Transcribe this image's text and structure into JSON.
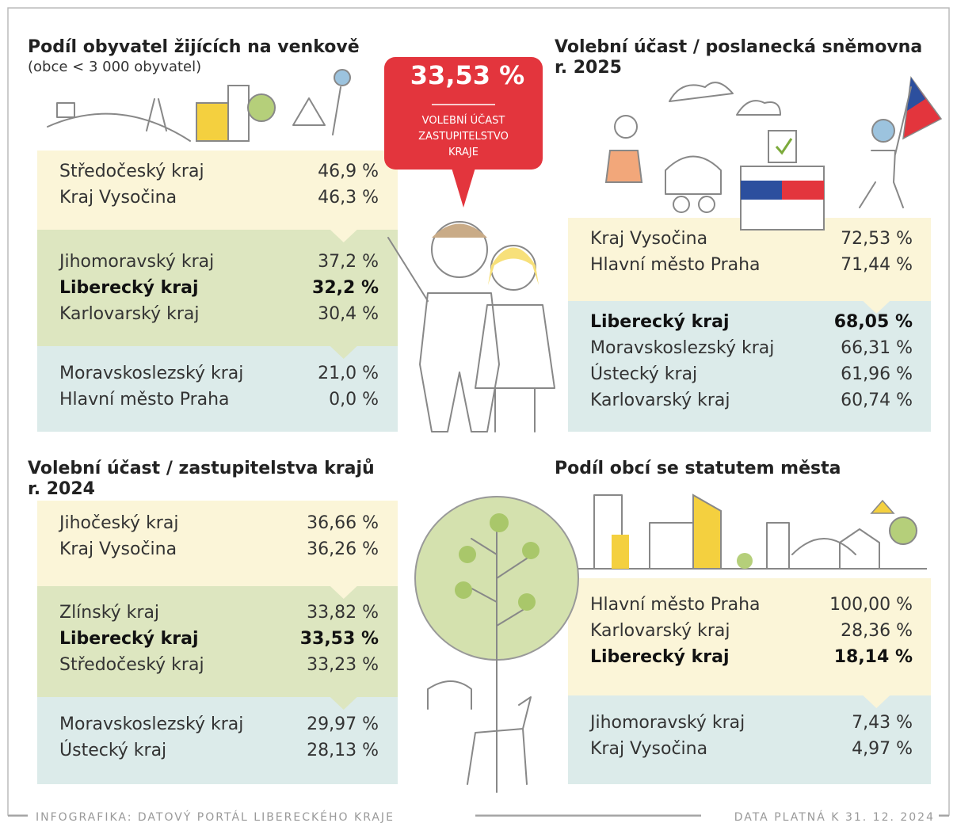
{
  "callout": {
    "value": "33,53 %",
    "label": [
      "VOLEBNÍ ÚČAST",
      "ZASTUPITELSTVO",
      "KRAJE"
    ]
  },
  "panels": [
    {
      "title": [
        "Podíl obyvatel žijících na venkově"
      ],
      "subtitle": "(obce < 3 000 obyvatel)",
      "groups": [
        {
          "color": "#fbf5d8",
          "rows": [
            {
              "name": "Středočeský kraj",
              "value": "46,9 %"
            },
            {
              "name": "Kraj Vysočina",
              "value": "46,3 %"
            }
          ]
        },
        {
          "color": "#dde6c0",
          "rows": [
            {
              "name": "Jihomoravský kraj",
              "value": "37,2 %"
            },
            {
              "name": "Liberecký kraj",
              "value": "32,2 %",
              "highlight": true
            },
            {
              "name": "Karlovarský kraj",
              "value": "30,4 %"
            }
          ]
        },
        {
          "color": "#dcebea",
          "rows": [
            {
              "name": "Moravskoslezský kraj",
              "value": "21,0 %"
            },
            {
              "name": "Hlavní město Praha",
              "value": "0,0 %"
            }
          ]
        }
      ]
    },
    {
      "title": [
        "Volební účast / poslanecká sněmovna",
        "r. 2025"
      ],
      "groups": [
        {
          "color": "#fbf5d8",
          "rows": [
            {
              "name": "Kraj Vysočina",
              "value": "72,53 %"
            },
            {
              "name": "Hlavní město Praha",
              "value": "71,44 %"
            }
          ]
        },
        {
          "color": "#dcebea",
          "rows": [
            {
              "name": "Liberecký kraj",
              "value": "68,05 %",
              "highlight": true
            },
            {
              "name": "Moravskoslezský kraj",
              "value": "66,31 %"
            },
            {
              "name": "Ústecký kraj",
              "value": "61,96 %"
            },
            {
              "name": "Karlovarský kraj",
              "value": "60,74 %"
            }
          ]
        }
      ]
    },
    {
      "title": [
        "Volební účast / zastupitelstva krajů",
        "r. 2024"
      ],
      "groups": [
        {
          "color": "#fbf5d8",
          "rows": [
            {
              "name": "Jihočeský kraj",
              "value": "36,66 %"
            },
            {
              "name": "Kraj Vysočina",
              "value": "36,26 %"
            }
          ]
        },
        {
          "color": "#dde6c0",
          "rows": [
            {
              "name": "Zlínský kraj",
              "value": "33,82 %"
            },
            {
              "name": "Liberecký kraj",
              "value": "33,53 %",
              "highlight": true
            },
            {
              "name": "Středočeský kraj",
              "value": "33,23 %"
            }
          ]
        },
        {
          "color": "#dcebea",
          "rows": [
            {
              "name": "Moravskoslezský kraj",
              "value": "29,97 %"
            },
            {
              "name": "Ústecký kraj",
              "value": "28,13 %"
            }
          ]
        }
      ]
    },
    {
      "title": [
        "Podíl obcí se statutem města"
      ],
      "groups": [
        {
          "color": "#fbf5d8",
          "rows": [
            {
              "name": "Hlavní město Praha",
              "value": "100,00 %"
            },
            {
              "name": "Karlovarský kraj",
              "value": "28,36 %"
            },
            {
              "name": "Liberecký kraj",
              "value": "18,14 %",
              "highlight": true
            }
          ]
        },
        {
          "color": "#dcebea",
          "rows": [
            {
              "name": "Jihomoravský kraj",
              "value": "7,43 %"
            },
            {
              "name": "Kraj Vysočina",
              "value": "4,97 %"
            }
          ]
        }
      ]
    }
  ],
  "footer": {
    "left": "INFOGRAFIKA: DATOVÝ PORTÁL LIBERECKÉHO KRAJE",
    "right": "DATA PLATNÁ K 31. 12. 2024"
  }
}
